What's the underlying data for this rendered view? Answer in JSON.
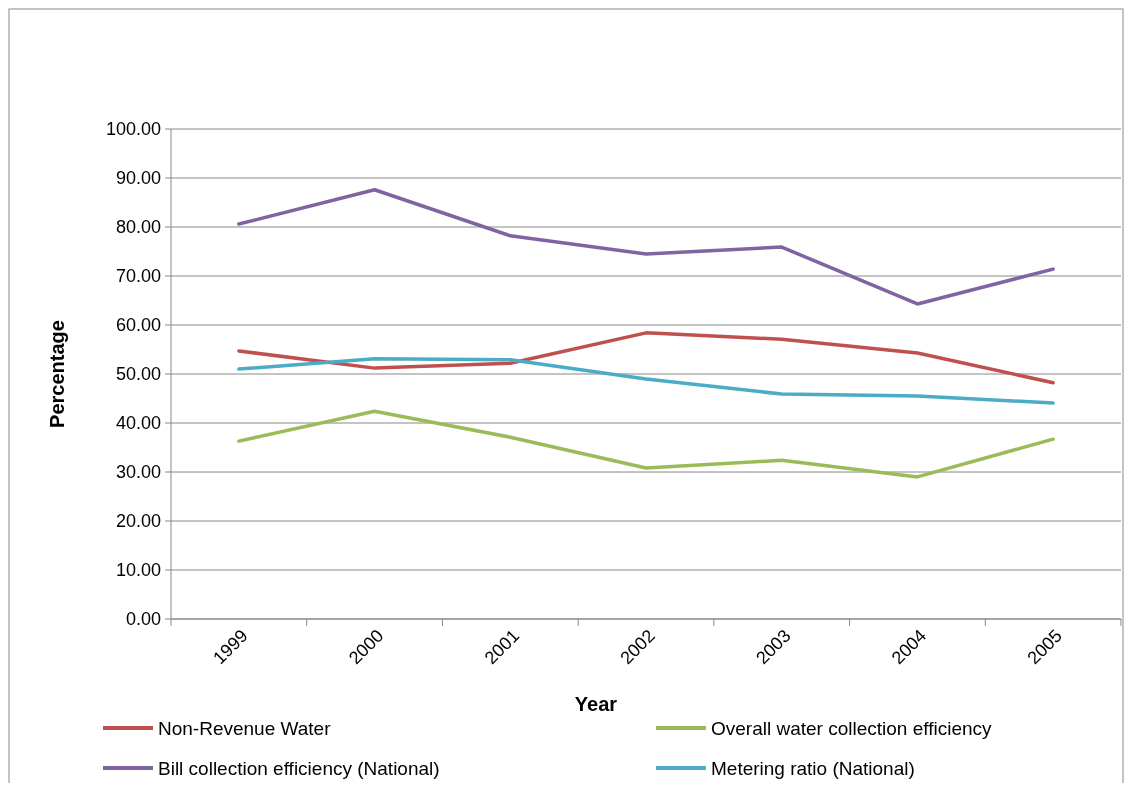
{
  "chart_data": {
    "type": "line",
    "xlabel": "Year",
    "ylabel": "Percentage",
    "categories": [
      "1999",
      "2000",
      "2001",
      "2002",
      "2003",
      "2004",
      "2005"
    ],
    "series": [
      {
        "name": "Non-Revenue Water",
        "color": "#c0504d",
        "values": [
          54.7,
          51.2,
          52.2,
          58.4,
          57.1,
          54.3,
          48.2
        ]
      },
      {
        "name": "Overall water collection efficiency",
        "color": "#9bbb59",
        "values": [
          36.3,
          42.4,
          37.1,
          30.8,
          32.4,
          29.0,
          36.7
        ]
      },
      {
        "name": "Bill collection efficiency (National)",
        "color": "#8064a2",
        "values": [
          80.6,
          87.6,
          78.2,
          74.5,
          75.9,
          64.3,
          71.4
        ]
      },
      {
        "name": "Metering ratio (National)",
        "color": "#4bacc6",
        "values": [
          51.0,
          53.1,
          52.9,
          49.0,
          45.9,
          45.5,
          44.1
        ]
      }
    ],
    "ylim": [
      0,
      100
    ],
    "yticks": [
      {
        "value": 0,
        "label": "0.00"
      },
      {
        "value": 10,
        "label": "10.00"
      },
      {
        "value": 20,
        "label": "20.00"
      },
      {
        "value": 30,
        "label": "30.00"
      },
      {
        "value": 40,
        "label": "40.00"
      },
      {
        "value": 50,
        "label": "50.00"
      },
      {
        "value": 60,
        "label": "60.00"
      },
      {
        "value": 70,
        "label": "70.00"
      },
      {
        "value": 80,
        "label": "80.00"
      },
      {
        "value": 90,
        "label": "90.00"
      },
      {
        "value": 100,
        "label": "100.00"
      }
    ],
    "grid": "y",
    "legend": "bottom",
    "marker": "none",
    "line_style": "solid"
  }
}
